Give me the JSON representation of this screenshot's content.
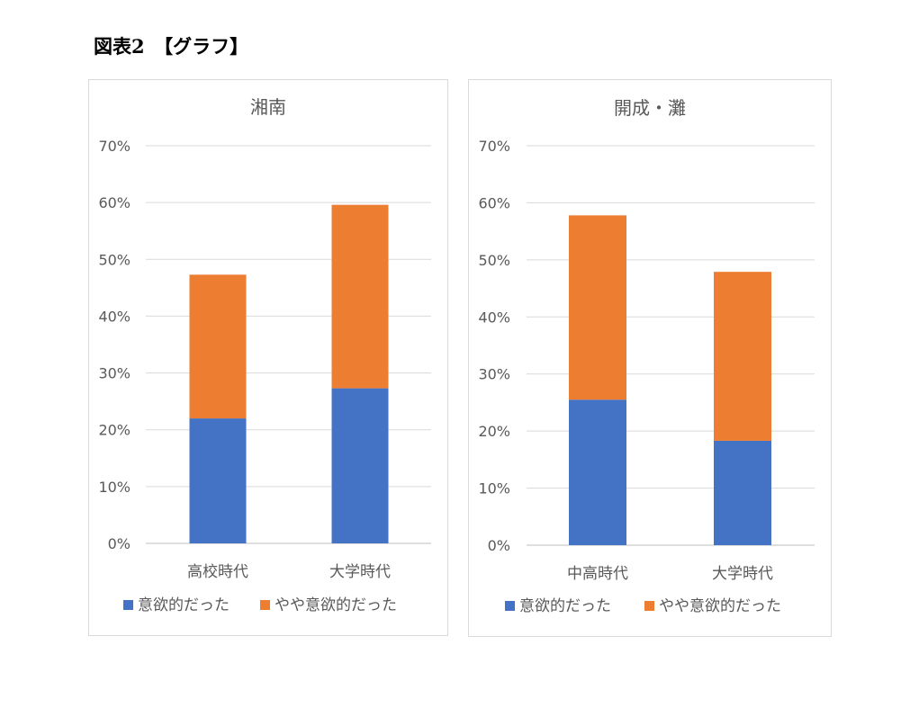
{
  "page_title": "図表2　【グラフ】",
  "colors": {
    "series_a": "#4472C4",
    "series_b": "#ED7D31",
    "grid": "#d9d9d9",
    "text": "#595959"
  },
  "chart_data": [
    {
      "type": "bar",
      "stacked": true,
      "title": "湘南",
      "categories": [
        "高校時代",
        "大学時代"
      ],
      "series": [
        {
          "name": "意欲的だった",
          "values": [
            22,
            27.3
          ]
        },
        {
          "name": "やや意欲的だった",
          "values": [
            25.3,
            32.3
          ]
        }
      ],
      "ylim": [
        0,
        70
      ],
      "yticks": [
        "0%",
        "10%",
        "20%",
        "30%",
        "40%",
        "50%",
        "60%",
        "70%"
      ],
      "grid": true,
      "legend": "bottom"
    },
    {
      "type": "bar",
      "stacked": true,
      "title": "開成・灘",
      "categories": [
        "中高時代",
        "大学時代"
      ],
      "series": [
        {
          "name": "意欲的だった",
          "values": [
            25.5,
            18.3
          ]
        },
        {
          "name": "やや意欲的だった",
          "values": [
            32.3,
            29.6
          ]
        }
      ],
      "ylim": [
        0,
        70
      ],
      "yticks": [
        "0%",
        "10%",
        "20%",
        "30%",
        "40%",
        "50%",
        "60%",
        "70%"
      ],
      "grid": true,
      "legend": "bottom"
    }
  ]
}
